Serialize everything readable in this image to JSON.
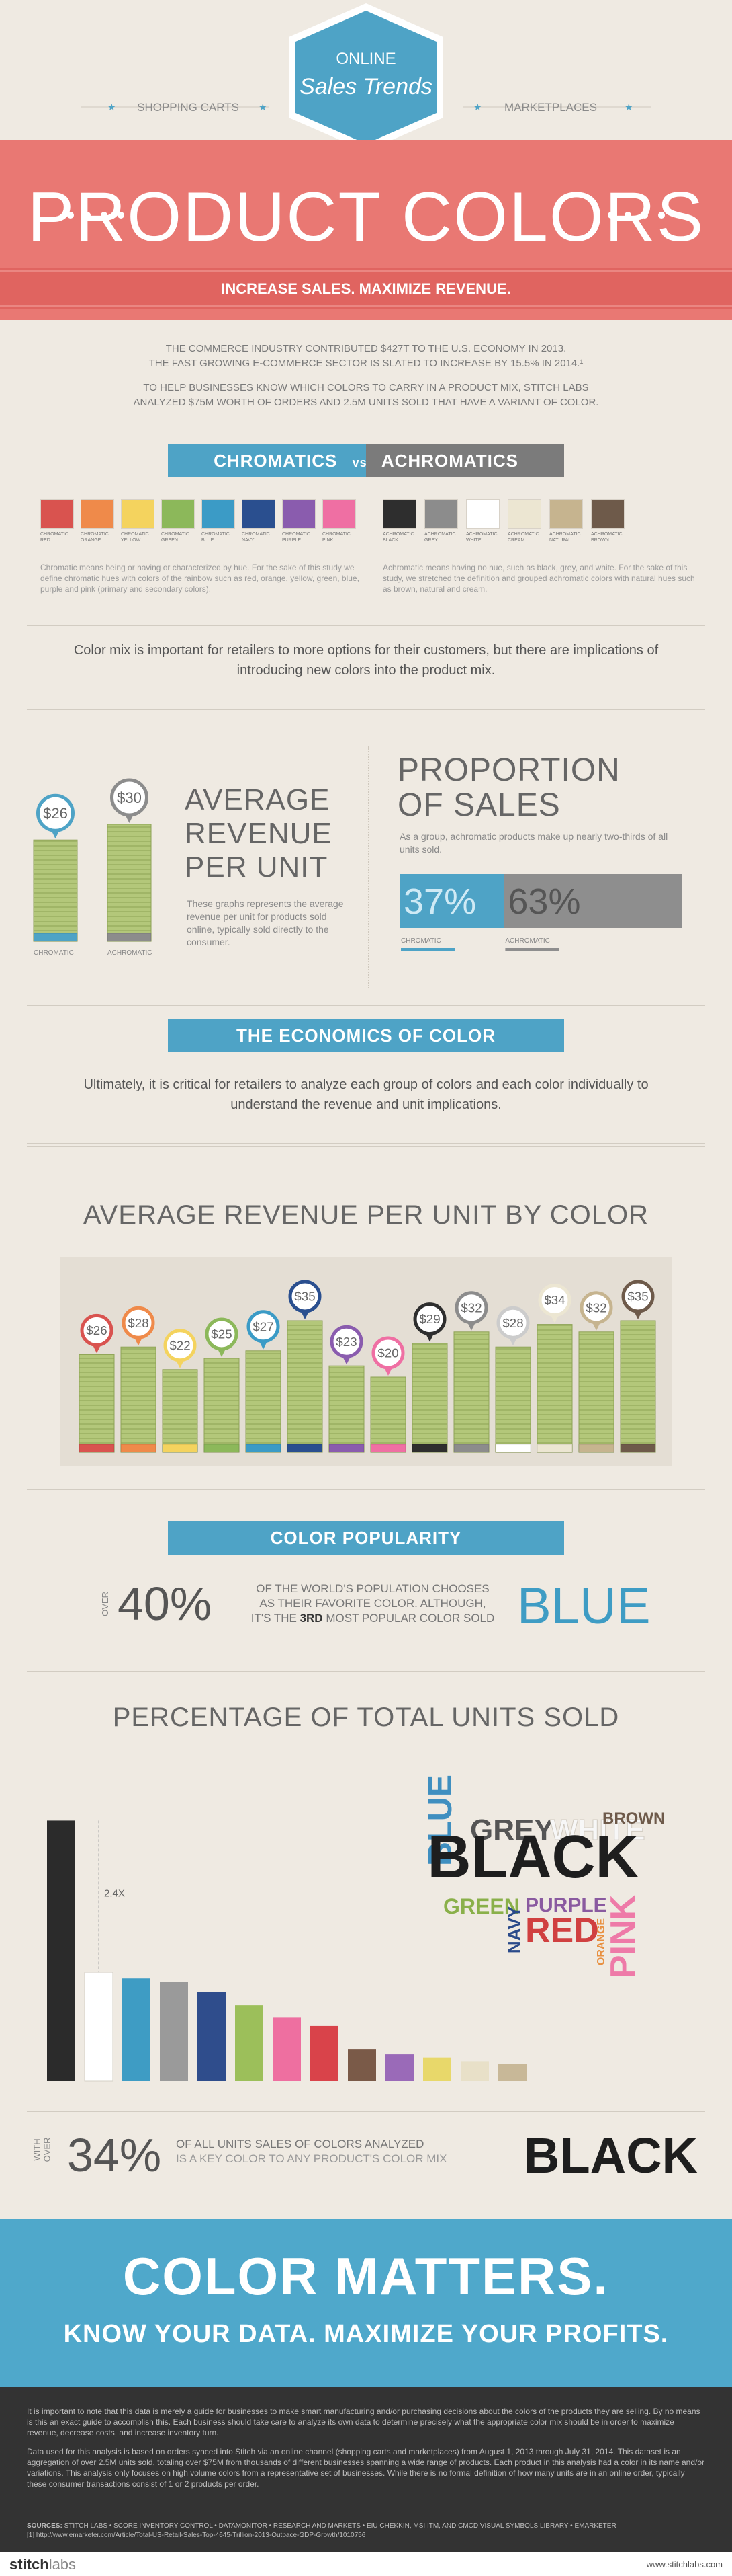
{
  "header": {
    "badge_top": "ONLINE",
    "badge_bottom": "Sales Trends",
    "left": "SHOPPING CARTS",
    "right": "MARKETPLACES",
    "title": "PRODUCT COLORS",
    "subtitle": "INCREASE SALES. MAXIMIZE REVENUE."
  },
  "intro": [
    "THE COMMERCE INDUSTRY CONTRIBUTED $427T TO THE U.S. ECONOMY IN 2013.",
    "THE FAST GROWING E-COMMERCE SECTOR IS SLATED TO INCREASE BY 15.5% IN 2014.¹",
    "TO HELP BUSINESSES KNOW WHICH COLORS TO CARRY IN A PRODUCT MIX, STITCH LABS",
    "ANALYZED $75M WORTH OF ORDERS AND 2.5M UNITS SOLD THAT HAVE A VARIANT OF COLOR."
  ],
  "comparison": {
    "left": "CHROMATICS",
    "vs": "vs",
    "right": "ACHROMATICS",
    "chromatic_swatches": [
      {
        "label": "CHROMATIC RED",
        "color": "#d9534f"
      },
      {
        "label": "CHROMATIC ORANGE",
        "color": "#ef8a4a"
      },
      {
        "label": "CHROMATIC YELLOW",
        "color": "#f4d35e"
      },
      {
        "label": "CHROMATIC GREEN",
        "color": "#8cb85a"
      },
      {
        "label": "CHROMATIC BLUE",
        "color": "#3b9bc6"
      },
      {
        "label": "CHROMATIC NAVY",
        "color": "#2a4f8f"
      },
      {
        "label": "CHROMATIC PURPLE",
        "color": "#8a5cae"
      },
      {
        "label": "CHROMATIC PINK",
        "color": "#ef6fa3"
      }
    ],
    "achromatic_swatches": [
      {
        "label": "ACHROMATIC BLACK",
        "color": "#2e2e2e"
      },
      {
        "label": "ACHROMATIC GREY",
        "color": "#8c8c8c"
      },
      {
        "label": "ACHROMATIC WHITE",
        "color": "#ffffff"
      },
      {
        "label": "ACHROMATIC CREAM",
        "color": "#ece6d2"
      },
      {
        "label": "ACHROMATIC NATURAL",
        "color": "#c6b48f"
      },
      {
        "label": "ACHROMATIC BROWN",
        "color": "#6e5a4a"
      }
    ],
    "chromatic_text": "Chromatic means being or having or characterized by hue. For the sake of this study we define chromatic hues with colors of the rainbow such as red, orange, yellow, green, blue, purple and pink (primary and secondary colors).",
    "achromatic_text": "Achromatic means having no hue, such as black, grey, and white. For the sake of this study, we stretched the definition and grouped achromatic colors with natural hues such as brown, natural and cream."
  },
  "statement": "Color mix is important for retailers to more options for their customers, but there are implications of introducing new colors into the product mix.",
  "average_revenue": {
    "title": "AVERAGE REVENUE PER UNIT",
    "text": "These graphs represents the average revenue per unit for products sold online, typically sold directly to the consumer.",
    "chart": {
      "type": "bar",
      "categories": [
        "CHROMATIC",
        "ACHROMATIC"
      ],
      "values": [
        26,
        30
      ],
      "value_labels": [
        "$26",
        "$30"
      ],
      "colors": [
        "#4ea3c6",
        "#8c8c8c"
      ]
    }
  },
  "proportion": {
    "title": "PROPORTION OF SALES",
    "text": "As a group, achromatic products make up nearly two-thirds of all units sold.",
    "chart": {
      "type": "stacked-bar",
      "categories": [
        "CHROMATIC",
        "ACHROMATIC"
      ],
      "values": [
        37,
        63
      ],
      "value_labels": [
        "37%",
        "63%"
      ],
      "colors": [
        "#4ea3c6",
        "#8e8e8e"
      ]
    }
  },
  "economics": {
    "ribbon": "THE ECONOMICS OF COLOR",
    "text": "Ultimately, it is critical for retailers to analyze each group of colors and each color individually to understand the revenue and unit implications."
  },
  "revenue_by_color": {
    "title": "AVERAGE REVENUE PER UNIT BY COLOR",
    "chart": {
      "type": "bar",
      "values": [
        26,
        28,
        22,
        25,
        27,
        35,
        23,
        20,
        29,
        32,
        28,
        34,
        32,
        35
      ],
      "value_labels": [
        "$26",
        "$28",
        "$22",
        "$25",
        "$27",
        "$35",
        "$23",
        "$20",
        "$29",
        "$32",
        "$28",
        "$34",
        "$32",
        "$35"
      ],
      "colors": [
        "#d9534f",
        "#ef8a4a",
        "#f4d35e",
        "#8cb85a",
        "#3b9bc6",
        "#2a4f8f",
        "#8a5cae",
        "#ef6fa3",
        "#2e2e2e",
        "#8c8c8c",
        "#ffffff",
        "#ece6d2",
        "#c6b48f",
        "#6e5a4a"
      ]
    }
  },
  "popularity": {
    "ribbon": "COLOR POPULARITY",
    "over": "OVER",
    "stat": "40%",
    "line_1": "OF THE WORLD'S POPULATION CHOOSES",
    "line_2": "AS THEIR FAVORITE COLOR. ALTHOUGH,",
    "line_3_pre": "IT'S THE",
    "rank": "3RD",
    "line_3_post": "MOST POPULAR COLOR SOLD",
    "color_word": "BLUE"
  },
  "units_sold": {
    "title": "PERCENTAGE OF TOTAL UNITS SOLD",
    "chart": {
      "type": "bar",
      "annotation": "2.4X",
      "values": [
        34,
        14.2,
        13.4,
        12.9,
        11.6,
        9.9,
        8.3,
        7.2,
        4.2,
        3.5,
        3.1,
        2.6,
        2.2
      ],
      "colors": [
        "#2b2b2b",
        "#ffffff",
        "#3e9cc4",
        "#9a9a9a",
        "#2f4d8c",
        "#9cbf5a",
        "#ee6fa0",
        "#d9434a",
        "#7a5a48",
        "#9a6ab8",
        "#e8d86a",
        "#e8e0c8",
        "#c8b898"
      ]
    },
    "word_cloud": [
      {
        "text": "BLUE",
        "color": "#3f8fc0"
      },
      {
        "text": "GREY",
        "color": "#555555"
      },
      {
        "text": "WHITE",
        "color": "#f7f7f7"
      },
      {
        "text": "BROWN",
        "color": "#6e5a4a"
      },
      {
        "text": "BLACK",
        "color": "#1e1e1e"
      },
      {
        "text": "GREEN",
        "color": "#8ab04a"
      },
      {
        "text": "NAVY",
        "color": "#2a4a8a"
      },
      {
        "text": "PURPLE",
        "color": "#8a5aa0"
      },
      {
        "text": "RED",
        "color": "#d04040"
      },
      {
        "text": "ORANGE",
        "color": "#e89040"
      },
      {
        "text": "PINK",
        "color": "#ee7aa8"
      }
    ]
  },
  "key_stat": {
    "with": "WITH",
    "over": "OVER",
    "stat": "34%",
    "line_1": "OF ALL UNITS SALES OF COLORS ANALYZED",
    "line_2": "IS A KEY COLOR TO ANY PRODUCT'S COLOR MIX",
    "color_word": "BLACK"
  },
  "banner": {
    "title": "COLOR MATTERS.",
    "subtitle": "KNOW YOUR DATA. MAXIMIZE YOUR PROFITS."
  },
  "footer": {
    "paragraphs": [
      "It is important to note that this data is merely a guide for businesses to make smart manufacturing and/or purchasing decisions about the colors of the products they are selling. By no means is this an exact guide to accomplish this. Each business should take care to analyze its own data to determine precisely what the appropriate color mix should be in order to maximize revenue, decrease costs, and increase inventory turn.",
      "Data used for this analysis is based on orders synced into Stitch via an online channel (shopping carts and marketplaces) from August 1, 2013 through July 31, 2014. This dataset is an aggregation of over 2.5M units sold, totaling over $75M from thousands of different businesses spanning a wide range of products. Each product in this analysis had a color in its name and/or variations. This analysis only focuses on high volume colors from a representative set of businesses. While there is no formal definition of how many units are in an online order, typically these consumer transactions consist of 1 or 2 products per order."
    ],
    "sources_label": "SOURCES:",
    "sources": "STITCH LABS • SCORE INVENTORY CONTROL • DATAMONITOR • RESEARCH AND MARKETS • EIU CHEKKIN, MSI ITM, AND CMCDIVISUAL SYMBOLS LIBRARY • EMARKETER",
    "footnote": "[1] http://www.emarketer.com/Article/Total-US-Retail-Sales-Top-4645-Trillion-2013-Outpace-GDP-Growth/1010756",
    "logo_bold": "stitch",
    "logo_light": "labs",
    "url": "www.stitchlabs.com"
  }
}
